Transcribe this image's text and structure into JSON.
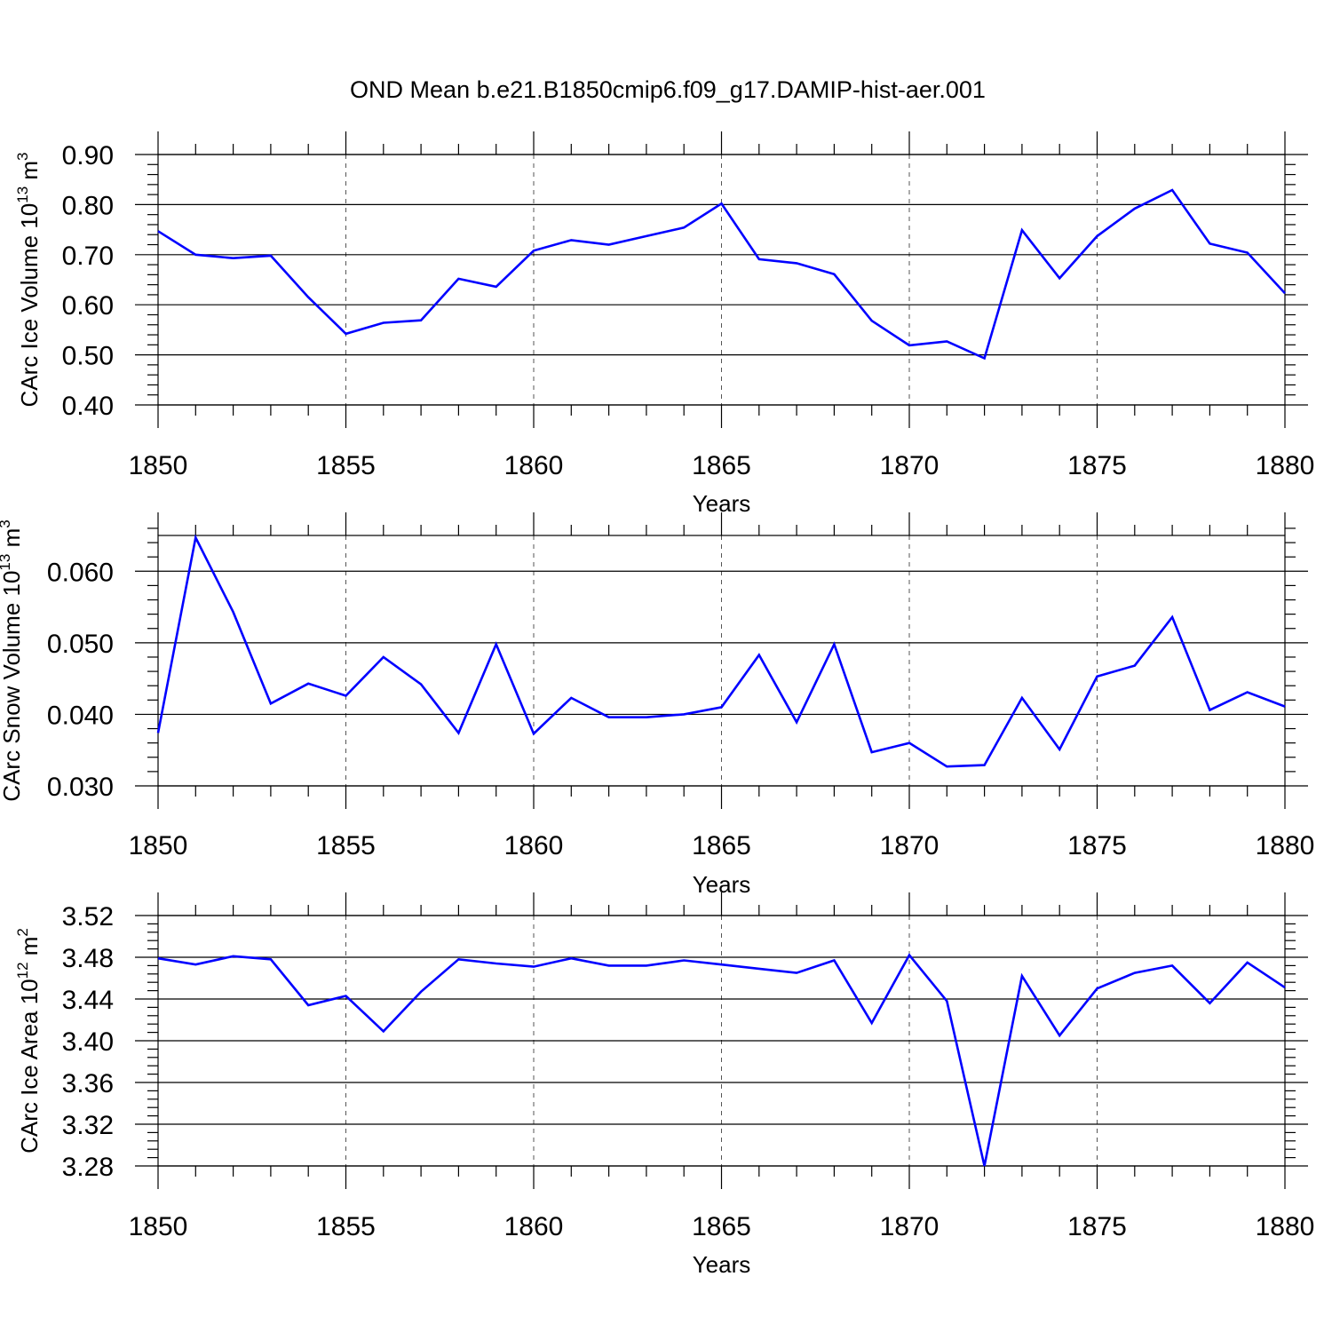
{
  "figure_title": "OND Mean b.e21.B1850cmip6.f09_g17.DAMIP-hist-aer.001",
  "colors": {
    "line": "#0000ff",
    "axes": "#000000",
    "grid": "#555555"
  },
  "chart_data": [
    {
      "type": "line",
      "title": "OND Mean b.e21.B1850cmip6.f09_g17.DAMIP-hist-aer.001",
      "xlabel": "Years",
      "ylabel": {
        "base": "CArc Ice Volume 10",
        "sup1": "13",
        "mid": " m",
        "sup2": "3"
      },
      "xlim": [
        1850,
        1880
      ],
      "ylim": [
        0.4,
        0.9
      ],
      "xticks": [
        1850,
        1855,
        1860,
        1865,
        1870,
        1875,
        1880
      ],
      "xtick_labels": [
        "1850",
        "1855",
        "1860",
        "1865",
        "1870",
        "1875",
        "1880"
      ],
      "yticks": [
        0.4,
        0.5,
        0.6,
        0.7,
        0.8,
        0.9
      ],
      "ytick_labels": [
        "0.40",
        "0.50",
        "0.60",
        "0.70",
        "0.80",
        "0.90"
      ],
      "y_minor_step": 0.02,
      "grid": "vertical dashed at major x ticks",
      "x": [
        1850,
        1851,
        1852,
        1853,
        1854,
        1855,
        1856,
        1857,
        1858,
        1859,
        1860,
        1861,
        1862,
        1863,
        1864,
        1865,
        1866,
        1867,
        1868,
        1869,
        1870,
        1871,
        1872,
        1873,
        1874,
        1875,
        1876,
        1877,
        1878,
        1879,
        1880
      ],
      "series": [
        {
          "name": "CArc Ice Volume",
          "values": [
            0.747,
            0.7,
            0.693,
            0.698,
            0.615,
            0.542,
            0.564,
            0.569,
            0.652,
            0.636,
            0.708,
            0.729,
            0.72,
            0.737,
            0.754,
            0.802,
            0.691,
            0.683,
            0.661,
            0.568,
            0.519,
            0.527,
            0.493,
            0.749,
            0.653,
            0.737,
            0.792,
            0.829,
            0.722,
            0.704,
            0.623
          ]
        }
      ]
    },
    {
      "type": "line",
      "xlabel": "Years",
      "ylabel": {
        "base": "CArc Snow Volume 10",
        "sup1": "13",
        "mid": " m",
        "sup2": "3"
      },
      "xlim": [
        1850,
        1880
      ],
      "ylim": [
        0.03,
        0.065
      ],
      "xticks": [
        1850,
        1855,
        1860,
        1865,
        1870,
        1875,
        1880
      ],
      "xtick_labels": [
        "1850",
        "1855",
        "1860",
        "1865",
        "1870",
        "1875",
        "1880"
      ],
      "yticks": [
        0.03,
        0.04,
        0.05,
        0.06
      ],
      "ytick_labels": [
        "0.030",
        "0.040",
        "0.050",
        "0.060"
      ],
      "y_minor_step": 0.002,
      "grid": "vertical dashed at major x ticks",
      "x": [
        1850,
        1851,
        1852,
        1853,
        1854,
        1855,
        1856,
        1857,
        1858,
        1859,
        1860,
        1861,
        1862,
        1863,
        1864,
        1865,
        1866,
        1867,
        1868,
        1869,
        1870,
        1871,
        1872,
        1873,
        1874,
        1875,
        1876,
        1877,
        1878,
        1879,
        1880
      ],
      "series": [
        {
          "name": "CArc Snow Volume",
          "values": [
            0.0374,
            0.0647,
            0.0543,
            0.0415,
            0.0443,
            0.0426,
            0.048,
            0.0442,
            0.0374,
            0.0498,
            0.0373,
            0.0423,
            0.0396,
            0.0396,
            0.04,
            0.041,
            0.0483,
            0.0389,
            0.0498,
            0.0347,
            0.036,
            0.0327,
            0.0329,
            0.0423,
            0.0351,
            0.0453,
            0.0468,
            0.0536,
            0.0406,
            0.0431,
            0.0411
          ]
        }
      ]
    },
    {
      "type": "line",
      "xlabel": "Years",
      "ylabel": {
        "base": "CArc Ice Area 10",
        "sup1": "12",
        "mid": " m",
        "sup2": "2"
      },
      "xlim": [
        1850,
        1880
      ],
      "ylim": [
        3.28,
        3.52
      ],
      "xticks": [
        1850,
        1855,
        1860,
        1865,
        1870,
        1875,
        1880
      ],
      "xtick_labels": [
        "1850",
        "1855",
        "1860",
        "1865",
        "1870",
        "1875",
        "1880"
      ],
      "yticks": [
        3.28,
        3.32,
        3.36,
        3.4,
        3.44,
        3.48,
        3.52
      ],
      "ytick_labels": [
        "3.28",
        "3.32",
        "3.36",
        "3.40",
        "3.44",
        "3.48",
        "3.52"
      ],
      "y_minor_step": 0.008,
      "grid": "vertical dashed at major x ticks",
      "x": [
        1850,
        1851,
        1852,
        1853,
        1854,
        1855,
        1856,
        1857,
        1858,
        1859,
        1860,
        1861,
        1862,
        1863,
        1864,
        1865,
        1866,
        1867,
        1868,
        1869,
        1870,
        1871,
        1872,
        1873,
        1874,
        1875,
        1876,
        1877,
        1878,
        1879,
        1880
      ],
      "series": [
        {
          "name": "CArc Ice Area",
          "values": [
            3.479,
            3.473,
            3.481,
            3.478,
            3.434,
            3.443,
            3.409,
            3.447,
            3.478,
            3.474,
            3.471,
            3.479,
            3.472,
            3.472,
            3.477,
            3.473,
            3.469,
            3.465,
            3.477,
            3.417,
            3.482,
            3.438,
            3.28,
            3.462,
            3.405,
            3.45,
            3.465,
            3.472,
            3.436,
            3.475,
            3.451
          ]
        }
      ]
    }
  ]
}
